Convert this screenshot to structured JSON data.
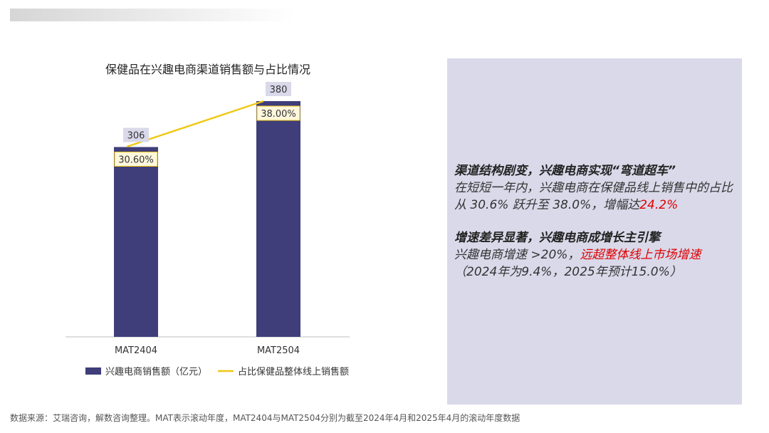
{
  "chart_data": {
    "type": "bar",
    "title": "保健品在兴趣电商渠道销售额与占比情况",
    "categories": [
      "MAT2404",
      "MAT2504"
    ],
    "series": [
      {
        "name": "兴趣电商销售额（亿元）",
        "type": "bar",
        "values": [
          306,
          380
        ],
        "labels": [
          "306",
          "380"
        ],
        "color": "#3f3d7a"
      },
      {
        "name": "占比保健品整体线上销售额",
        "type": "line",
        "values": [
          30.6,
          38.0
        ],
        "labels": [
          "30.60%",
          "38.00%"
        ],
        "color": "#f0c814"
      }
    ],
    "ylim": [
      0,
      380
    ],
    "grid": false,
    "legend": "bottom"
  },
  "panel": {
    "heading1": "渠道结构剧变，兴趣电商实现“弯道超车”",
    "body1": "在短短一年内，兴趣电商在保健品线上销售中的占比从 30.6% 跃升至 38.0%，增幅达",
    "body1_highlight": "24.2%",
    "heading2": "增速差异显著，兴趣电商成增长主引擎",
    "body2_pre": "兴趣电商增速 >20%，",
    "body2_highlight": "远超整体线上市场增速",
    "body2_post": "（2024年为9.4%，2025年预计15.0%）",
    "highlight_color": "#e00000"
  },
  "footnote": "数据来源：艾瑞咨询，解数咨询整理。MAT表示滚动年度，MAT2404与MAT2504分别为截至2024年4月和2025年4月的滚动年度数据"
}
